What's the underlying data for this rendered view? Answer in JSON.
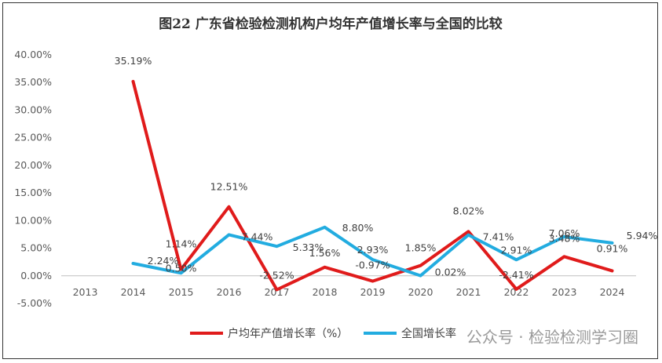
{
  "chart_data": {
    "type": "line",
    "title": "图22  广东省检验检测机构户均年产值增长率与全国的比较",
    "categories": [
      "2013",
      "2014",
      "2015",
      "2016",
      "2017",
      "2018",
      "2019",
      "2020",
      "2021",
      "2022",
      "2023",
      "2024"
    ],
    "ylim": [
      -5,
      40
    ],
    "yticks": [
      "-5.00%",
      "0.00%",
      "5.00%",
      "10.00%",
      "15.00%",
      "20.00%",
      "25.00%",
      "30.00%",
      "35.00%",
      "40.00%"
    ],
    "grid": false,
    "legend_position": "bottom",
    "series": [
      {
        "name": "户均年产值增长率（%）",
        "color": "#e01b1b",
        "values": [
          null,
          35.19,
          1.14,
          12.51,
          -2.52,
          1.56,
          -0.97,
          1.85,
          8.02,
          -2.41,
          3.48,
          0.91
        ],
        "labels": [
          null,
          "35.19%",
          "1.14%",
          "12.51%",
          "-2.52%",
          "1.56%",
          "-0.97%",
          "1.85%",
          "8.02%",
          "-2.41%",
          "3.48%",
          "0.91%"
        ]
      },
      {
        "name": "全国增长率",
        "color": "#22ace0",
        "values": [
          null,
          2.24,
          0.5,
          7.44,
          5.33,
          8.8,
          2.93,
          0.02,
          7.41,
          2.91,
          7.06,
          5.94
        ],
        "labels": [
          null,
          "2.24%",
          "0.50%",
          "7.44%",
          "5.33%",
          "8.80%",
          "2.93%",
          "0.02%",
          "7.41%",
          "2.91%",
          "7.06%",
          "5.94%"
        ]
      }
    ]
  },
  "watermark": "公众号 · 检验检测学习圈"
}
